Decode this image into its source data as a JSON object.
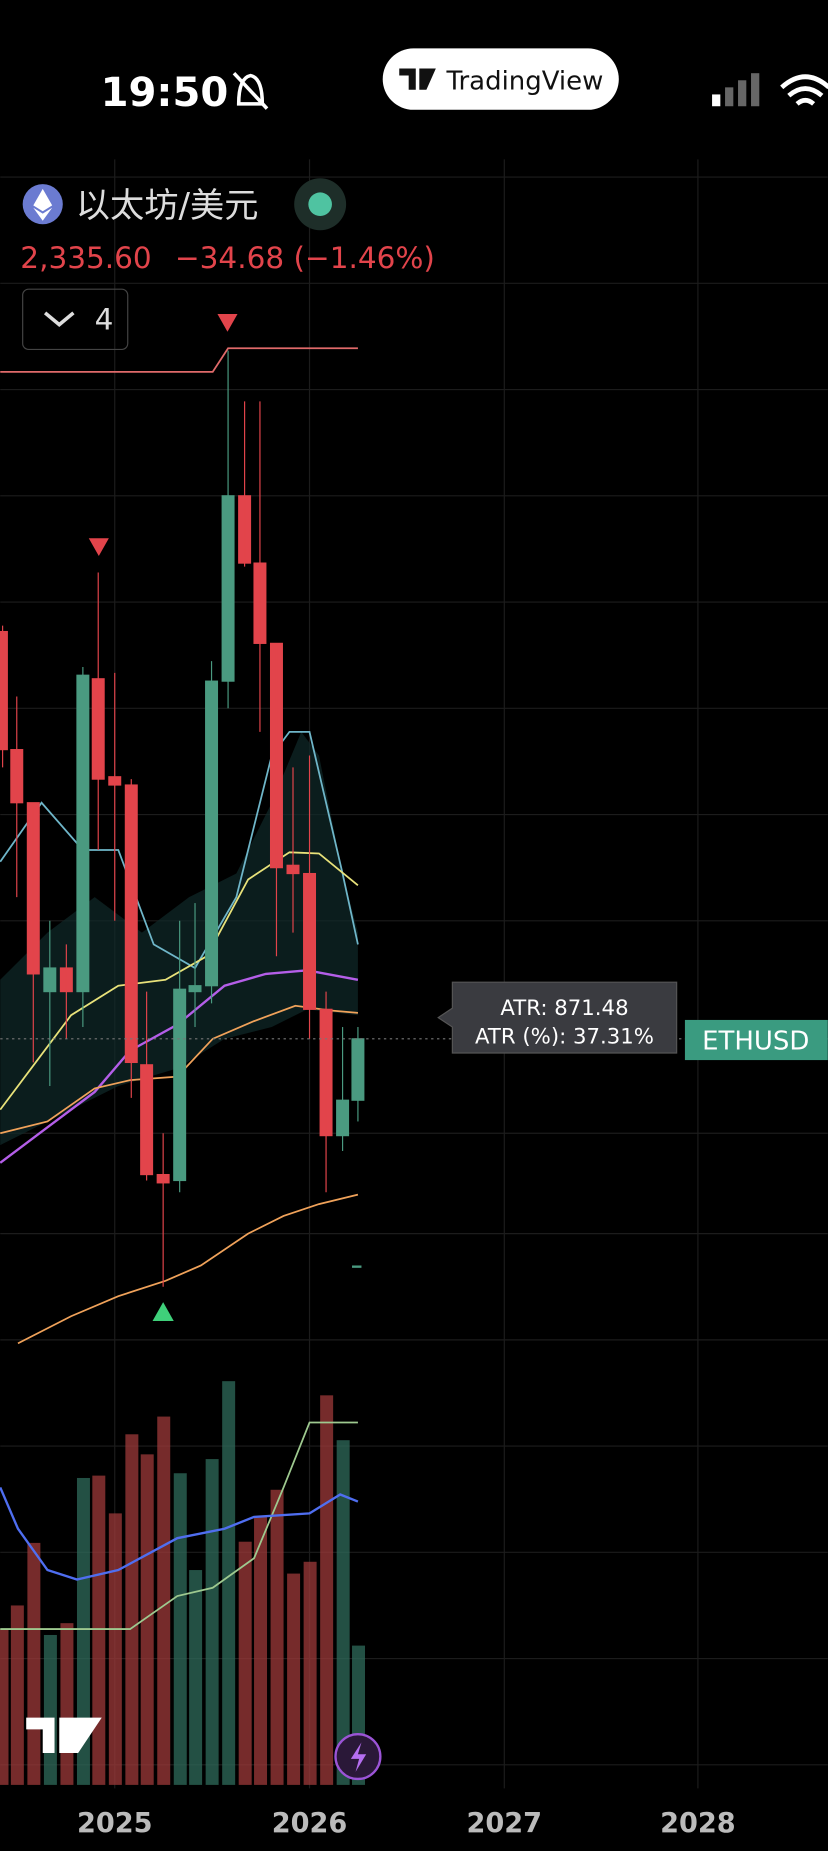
{
  "status_bar": {
    "time": "19:50",
    "app": "TradingView"
  },
  "header": {
    "symbol": "以太坊/美元",
    "price": "2,335.60",
    "change": "−34.68 (−1.46%)",
    "indicator_count": "4"
  },
  "tooltip": {
    "atr": "ATR: 871.48",
    "atr_pct": "ATR (%): 37.31%"
  },
  "price_tag": "ETHUSD",
  "x_axis": [
    "2025",
    "2026",
    "2027",
    "2028"
  ]
}
